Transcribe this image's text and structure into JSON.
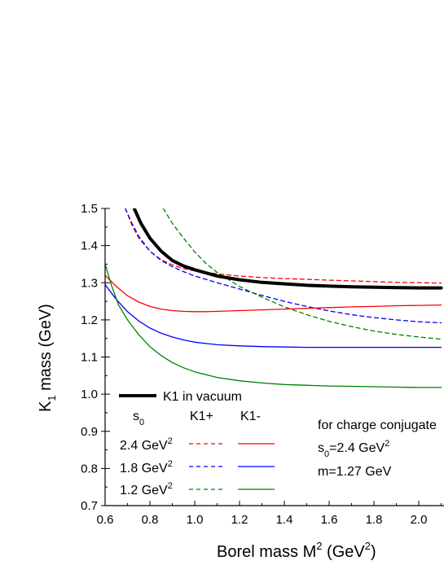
{
  "chart_data": {
    "type": "line",
    "xlabel": "Borel mass M",
    "xlabel_sup": "2",
    "xlabel_unit": " (GeV",
    "xlabel_unit_sup": "2",
    "xlabel_close": ")",
    "ylabel": "K",
    "ylabel_sub": "1",
    "ylabel_rest": " mass (GeV)",
    "xlim": [
      0.6,
      2.1
    ],
    "ylim": [
      0.7,
      1.5
    ],
    "xticks": [
      "0.6",
      "0.8",
      "1.0",
      "1.2",
      "1.4",
      "1.6",
      "1.8",
      "2.0"
    ],
    "yticks": [
      "0.7",
      "0.8",
      "0.9",
      "1.0",
      "1.1",
      "1.2",
      "1.3",
      "1.4",
      "1.5"
    ],
    "series": [
      {
        "name": "K1 in vacuum",
        "color": "#000000",
        "dash": "solid",
        "width": 4,
        "x": [
          0.73,
          0.76,
          0.8,
          0.85,
          0.9,
          0.95,
          1.0,
          1.1,
          1.2,
          1.3,
          1.4,
          1.5,
          1.6,
          1.7,
          1.8,
          1.9,
          2.0,
          2.1
        ],
        "y": [
          1.5,
          1.46,
          1.42,
          1.385,
          1.36,
          1.345,
          1.335,
          1.318,
          1.308,
          1.301,
          1.297,
          1.293,
          1.291,
          1.289,
          1.288,
          1.287,
          1.286,
          1.286
        ]
      },
      {
        "name": "2.4 GeV2 K1+",
        "color": "#ff0000",
        "dash": "dash",
        "width": 1.3,
        "x": [
          0.69,
          0.72,
          0.75,
          0.8,
          0.85,
          0.9,
          0.95,
          1.0,
          1.1,
          1.2,
          1.3,
          1.4,
          1.5,
          1.6,
          1.7,
          1.8,
          1.9,
          2.0,
          2.1
        ],
        "y": [
          1.5,
          1.455,
          1.42,
          1.385,
          1.362,
          1.348,
          1.338,
          1.332,
          1.324,
          1.318,
          1.314,
          1.311,
          1.309,
          1.307,
          1.305,
          1.303,
          1.301,
          1.3,
          1.299
        ]
      },
      {
        "name": "1.8 GeV2 K1+",
        "color": "#0000ff",
        "dash": "dash",
        "width": 1.3,
        "x": [
          0.69,
          0.72,
          0.75,
          0.8,
          0.85,
          0.9,
          0.95,
          1.0,
          1.1,
          1.2,
          1.3,
          1.4,
          1.5,
          1.6,
          1.7,
          1.8,
          1.9,
          2.0,
          2.1
        ],
        "y": [
          1.5,
          1.46,
          1.425,
          1.385,
          1.36,
          1.343,
          1.33,
          1.318,
          1.3,
          1.283,
          1.266,
          1.25,
          1.236,
          1.224,
          1.214,
          1.206,
          1.2,
          1.195,
          1.192
        ]
      },
      {
        "name": "1.2 GeV2 K1+",
        "color": "#008000",
        "dash": "dash",
        "width": 1.3,
        "x": [
          0.86,
          0.9,
          0.95,
          1.0,
          1.05,
          1.1,
          1.2,
          1.3,
          1.4,
          1.5,
          1.6,
          1.7,
          1.8,
          1.9,
          2.0,
          2.1
        ],
        "y": [
          1.5,
          1.46,
          1.42,
          1.383,
          1.352,
          1.328,
          1.29,
          1.261,
          1.235,
          1.214,
          1.196,
          1.182,
          1.17,
          1.161,
          1.154,
          1.148
        ]
      },
      {
        "name": "2.4 GeV2 K1-",
        "color": "#ff0000",
        "dash": "solid",
        "width": 1.3,
        "x": [
          0.6,
          0.65,
          0.7,
          0.75,
          0.8,
          0.85,
          0.9,
          0.95,
          1.0,
          1.05,
          1.1,
          1.2,
          1.3,
          1.4,
          1.5,
          1.6,
          1.7,
          1.8,
          1.9,
          2.0,
          2.1
        ],
        "y": [
          1.32,
          1.29,
          1.265,
          1.248,
          1.236,
          1.229,
          1.225,
          1.223,
          1.222,
          1.222,
          1.223,
          1.225,
          1.227,
          1.229,
          1.231,
          1.233,
          1.235,
          1.236,
          1.238,
          1.239,
          1.24
        ]
      },
      {
        "name": "1.8 GeV2 K1-",
        "color": "#0000ff",
        "dash": "solid",
        "width": 1.3,
        "x": [
          0.6,
          0.65,
          0.7,
          0.75,
          0.8,
          0.85,
          0.9,
          0.95,
          1.0,
          1.1,
          1.2,
          1.3,
          1.4,
          1.5,
          1.6,
          1.7,
          1.8,
          1.9,
          2.0,
          2.1
        ],
        "y": [
          1.295,
          1.255,
          1.222,
          1.197,
          1.178,
          1.164,
          1.154,
          1.146,
          1.14,
          1.133,
          1.13,
          1.128,
          1.127,
          1.126,
          1.126,
          1.126,
          1.126,
          1.126,
          1.126,
          1.126
        ]
      },
      {
        "name": "1.2 GeV2 K1-",
        "color": "#008000",
        "dash": "solid",
        "width": 1.3,
        "x": [
          0.6,
          0.63,
          0.66,
          0.7,
          0.75,
          0.8,
          0.85,
          0.9,
          0.95,
          1.0,
          1.1,
          1.2,
          1.3,
          1.4,
          1.5,
          1.6,
          1.7,
          1.8,
          1.9,
          2.0,
          2.1
        ],
        "y": [
          1.35,
          1.29,
          1.24,
          1.2,
          1.16,
          1.128,
          1.104,
          1.085,
          1.071,
          1.06,
          1.045,
          1.036,
          1.03,
          1.026,
          1.024,
          1.022,
          1.021,
          1.02,
          1.019,
          1.018,
          1.018
        ]
      }
    ],
    "legend": {
      "vacuum_label": "K1 in vacuum",
      "s0_label": "s",
      "s0_sub": "0",
      "col_plus": "K1+",
      "col_minus": "K1-",
      "rows": [
        {
          "label": "2.4 GeV",
          "sup": "2",
          "color": "#ff0000"
        },
        {
          "label": "1.8 GeV",
          "sup": "2",
          "color": "#0000ff"
        },
        {
          "label": "1.2 GeV",
          "sup": "2",
          "color": "#008000"
        }
      ]
    },
    "annotation": {
      "line1": "for charge conjugate",
      "line2_s": "s",
      "line2_sub": "0",
      "line2_rest": "=2.4 GeV",
      "line2_sup": "2",
      "line3": "m=1.27 GeV"
    }
  }
}
